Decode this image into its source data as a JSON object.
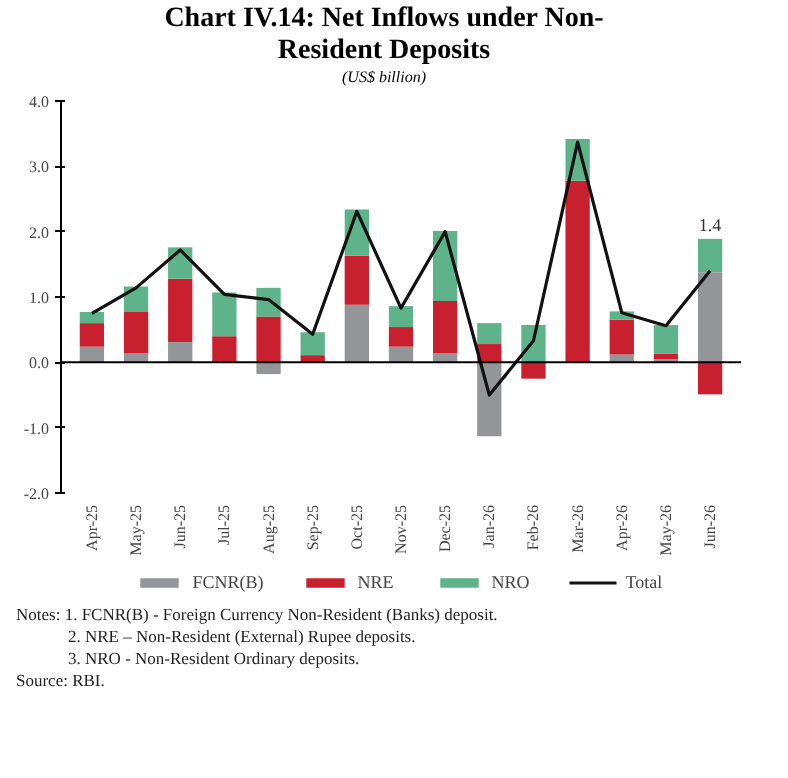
{
  "chart_data": {
    "type": "bar",
    "stacked": true,
    "title": "Chart IV.14: Net Inflows under Non-Resident Deposits",
    "subtitle": "(US$ billion)",
    "categories": [
      "Apr-25",
      "May-25",
      "Jun-25",
      "Jul-25",
      "Aug-25",
      "Sep-25",
      "Oct-25",
      "Nov-25",
      "Dec-25",
      "Jan-26",
      "Feb-26",
      "Mar-26",
      "Apr-26",
      "May-26",
      "Jun-26"
    ],
    "series": [
      {
        "name": "FCNR(B)",
        "color": "#939598",
        "values": [
          0.24,
          0.14,
          0.31,
          0.0,
          -0.18,
          0.0,
          0.88,
          0.24,
          0.14,
          -1.13,
          0.0,
          0.0,
          0.12,
          0.05,
          1.38
        ]
      },
      {
        "name": "NRE",
        "color": "#c8202f",
        "values": [
          0.36,
          0.63,
          0.97,
          0.4,
          0.7,
          0.11,
          0.75,
          0.3,
          0.8,
          0.28,
          -0.25,
          2.78,
          0.53,
          0.08,
          -0.49
        ]
      },
      {
        "name": "NRO",
        "color": "#5fb38a",
        "values": [
          0.17,
          0.39,
          0.48,
          0.67,
          0.44,
          0.35,
          0.71,
          0.32,
          1.07,
          0.32,
          0.57,
          0.64,
          0.13,
          0.44,
          0.51
        ]
      },
      {
        "name": "Total",
        "type": "line",
        "color": "#111111",
        "values": [
          0.75,
          1.14,
          1.72,
          1.04,
          0.96,
          0.43,
          2.31,
          0.83,
          2.0,
          -0.5,
          0.33,
          3.37,
          0.76,
          0.56,
          1.4
        ],
        "value_labels": [
          null,
          null,
          null,
          null,
          null,
          null,
          null,
          null,
          null,
          null,
          null,
          null,
          null,
          null,
          "1.4"
        ]
      }
    ],
    "ylim": [
      -2.0,
      4.0
    ],
    "yticks": [
      {
        "value": -2,
        "label": "-2.0"
      },
      {
        "value": -1,
        "label": "-1.0"
      },
      {
        "value": 0,
        "label": "0.0"
      },
      {
        "value": 1,
        "label": "1.0"
      },
      {
        "value": 2,
        "label": "2.0"
      },
      {
        "value": 3,
        "label": "3.0"
      },
      {
        "value": 4,
        "label": "4.0"
      }
    ],
    "ref_lines": [
      {
        "axis": "y",
        "value": 0,
        "color": "#000000"
      }
    ],
    "legend": "bottom",
    "grid": false,
    "marker": "none",
    "annotations": [
      "Notes: 1. FCNR(B) - Foreign Currency Non-Resident (Banks) deposit.",
      "2. NRE – Non-Resident (External) Rupee deposits.",
      "3. NRO - Non-Resident Ordinary deposits.",
      "Source: RBI."
    ]
  }
}
